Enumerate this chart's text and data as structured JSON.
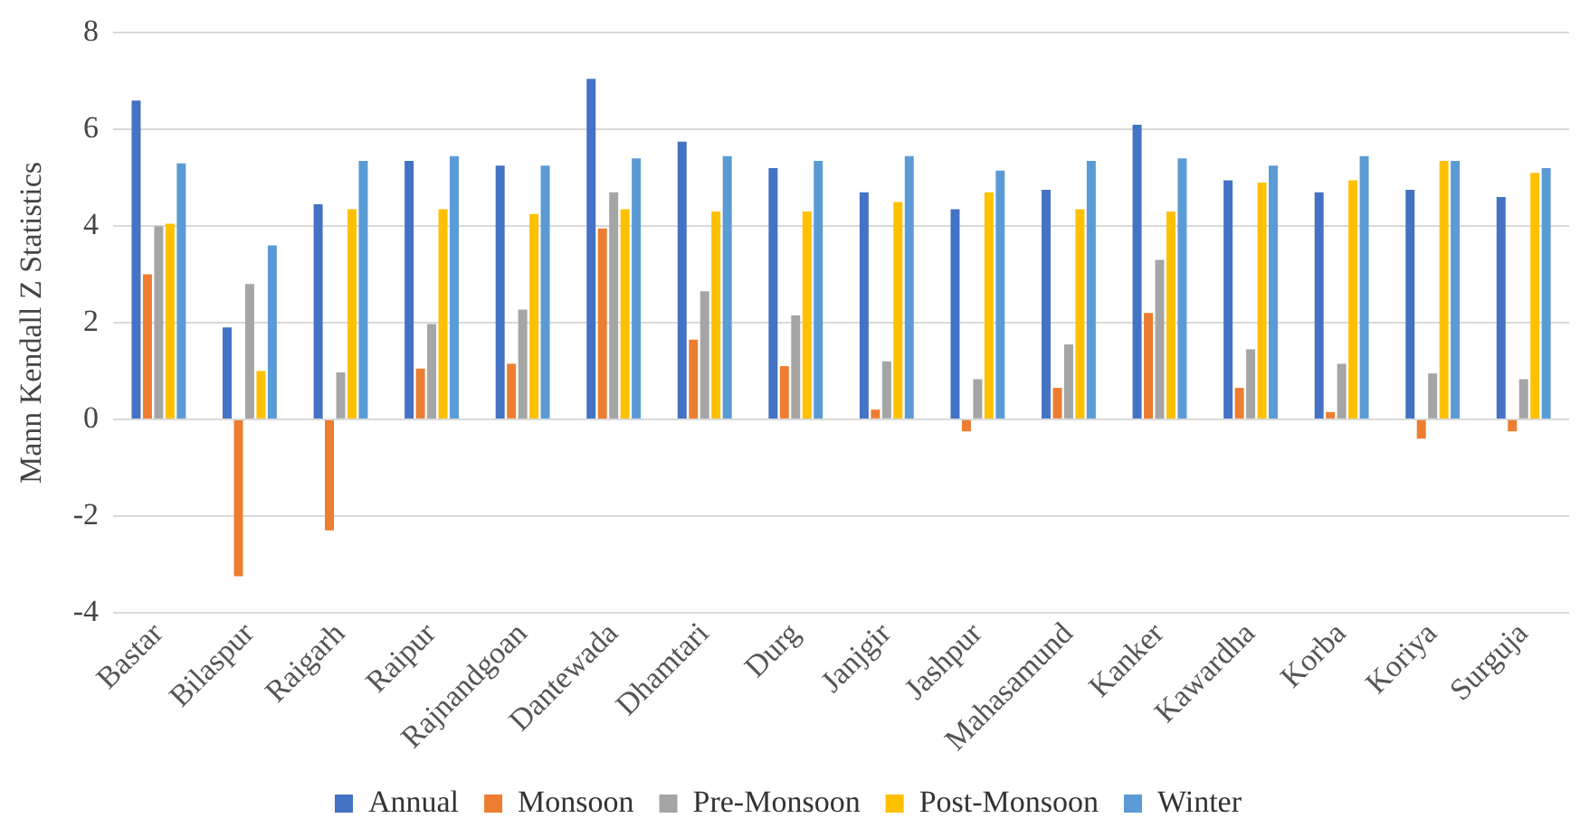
{
  "chart_data": {
    "type": "bar",
    "ylabel": "Mann Kendall Z Statistics",
    "categories": [
      "Bastar",
      "Bilaspur",
      "Raigarh",
      "Raipur",
      "Rajnandgoan",
      "Dantewada",
      "Dhamtari",
      "Durg",
      "Janjgir",
      "Jashpur",
      "Mahasamund",
      "Kanker",
      "Kawardha",
      "Korba",
      "Koriya",
      "Surguja"
    ],
    "series": [
      {
        "name": "Annual",
        "color": "#4472c4",
        "values": [
          6.6,
          1.9,
          4.45,
          5.35,
          5.25,
          7.05,
          5.75,
          5.2,
          4.7,
          4.35,
          4.75,
          6.1,
          4.95,
          4.7,
          4.75,
          4.6
        ]
      },
      {
        "name": "Monsoon",
        "color": "#ed7d31",
        "values": [
          3.0,
          -3.25,
          -2.3,
          1.05,
          1.15,
          3.95,
          1.65,
          1.1,
          0.2,
          -0.25,
          0.65,
          2.2,
          0.65,
          0.15,
          -0.4,
          -0.25
        ]
      },
      {
        "name": "Pre-Monsoon",
        "color": "#a5a5a5",
        "values": [
          4.0,
          2.8,
          0.97,
          1.97,
          2.27,
          4.7,
          2.65,
          2.15,
          1.2,
          0.83,
          1.55,
          3.3,
          1.45,
          1.15,
          0.95,
          0.83
        ]
      },
      {
        "name": "Post-Monsoon",
        "color": "#ffc000",
        "values": [
          4.05,
          1.0,
          4.35,
          4.35,
          4.25,
          4.35,
          4.3,
          4.3,
          4.5,
          4.7,
          4.35,
          4.3,
          4.9,
          4.95,
          5.35,
          5.1
        ]
      },
      {
        "name": "Winter",
        "color": "#5b9bd5",
        "values": [
          5.3,
          3.6,
          5.35,
          5.45,
          5.25,
          5.4,
          5.45,
          5.35,
          5.45,
          5.15,
          5.35,
          5.4,
          5.25,
          5.45,
          5.35,
          5.2
        ]
      }
    ],
    "ylim": [
      -4,
      8
    ],
    "yticks": [
      -4,
      -2,
      0,
      2,
      4,
      6,
      8
    ],
    "grid": "y",
    "legend": "bottom"
  }
}
